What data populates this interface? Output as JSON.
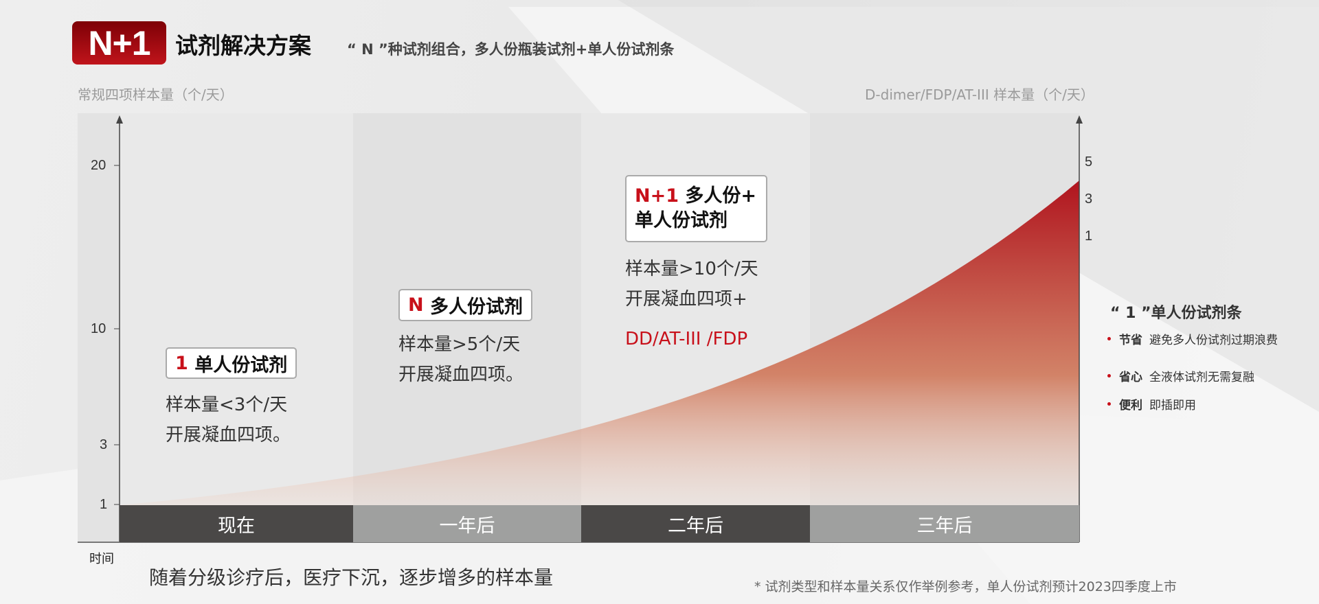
{
  "header": {
    "badge": "N+1",
    "title": "试剂解决方案",
    "subtitle": "“ N ”种试剂组合，多人份瓶装试剂+单人份试剂条"
  },
  "chart_data": {
    "type": "area",
    "left_axis_label": "常规四项样本量（个/天）",
    "right_axis_label": "D-dimer/FDP/AT-III 样本量（个/天）",
    "left_ticks": [
      1,
      3,
      10,
      20
    ],
    "right_ticks": [
      1,
      3,
      5
    ],
    "categories": [
      "现在",
      "一年后",
      "二年后",
      "三年后"
    ],
    "xlabel": "时间",
    "colors": {
      "curve_top": "#b0141e",
      "curve_bottom": "#e8a68a",
      "bar_dark": "#4a4847",
      "bar_light": "#9fa09f"
    }
  },
  "stages": [
    {
      "tag": "1",
      "label": "单人份试剂",
      "lines": [
        "样本量<3个/天",
        "开展凝血四项。"
      ]
    },
    {
      "tag": "N",
      "label": "多人份试剂",
      "lines": [
        "样本量>5个/天",
        "开展凝血四项。"
      ]
    },
    {
      "tag": "N+1",
      "label": "多人份+",
      "label2": "单人份试剂",
      "lines": [
        "样本量>10个/天",
        "开展凝血四项+"
      ],
      "extra": "DD/AT-III /FDP"
    }
  ],
  "right_panel": {
    "title": "“ 1 ”单人份试剂条",
    "items": [
      {
        "key": "节省",
        "text": "避免多人份试剂过期浪费"
      },
      {
        "key": "省心",
        "text": "全液体试剂无需复融"
      },
      {
        "key": "便利",
        "text": "即插即用"
      }
    ]
  },
  "caption": "随着分级诊疗后，医疗下沉，逐步增多的样本量",
  "footnote": "* 试剂类型和样本量关系仅作举例参考，单人份试剂预计2023四季度上市"
}
